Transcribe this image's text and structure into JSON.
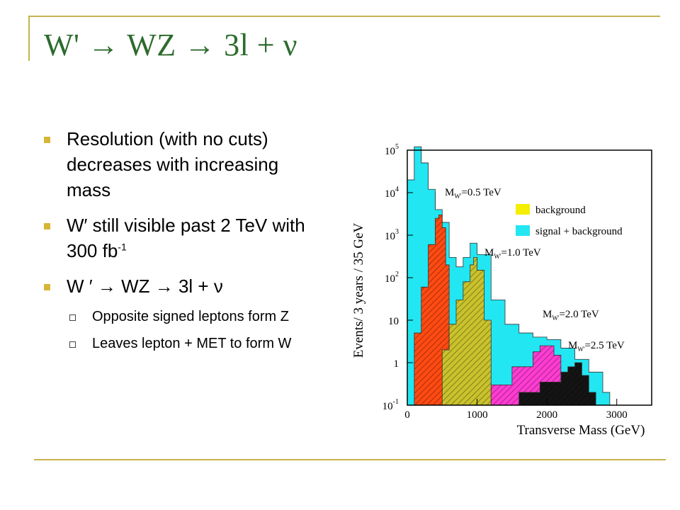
{
  "slide": {
    "title": "W' → WZ → 3l + ν",
    "bullets": [
      {
        "text": "Resolution (with no cuts) decreases with increasing mass"
      },
      {
        "text": "W′ still visible past 2 TeV with 300 fb",
        "sup": "-1"
      },
      {
        "text": "W ′ → WZ → 3l + ν"
      }
    ],
    "subbullets": [
      {
        "text": "Opposite signed leptons form Z"
      },
      {
        "text": "Leaves lepton + MET to form W"
      }
    ]
  },
  "chart_data": {
    "type": "area",
    "xlabel": "Transverse Mass (GeV)",
    "ylabel": "Events/ 3 years / 35 GeV",
    "xlim": [
      0,
      3500
    ],
    "ylim_log10": [
      -1,
      5
    ],
    "log_y": true,
    "x_ticks": [
      "0",
      "1000",
      "2000",
      "3000"
    ],
    "y_ticks": [
      {
        "base": "10",
        "exp": "5"
      },
      {
        "base": "10",
        "exp": "4"
      },
      {
        "base": "10",
        "exp": "3"
      },
      {
        "base": "10",
        "exp": "2"
      },
      {
        "base": "10",
        "exp": ""
      },
      {
        "base": "1",
        "exp": ""
      },
      {
        "base": "10",
        "exp": "-1"
      }
    ],
    "legend": [
      {
        "label": "background",
        "color": "#f6ee00"
      },
      {
        "label": "signal + background",
        "color": "#22e6f2"
      }
    ],
    "legend_position": "top-right",
    "annotations": [
      {
        "base": "M",
        "sub": "W'",
        "rest": "=0.5 TeV"
      },
      {
        "base": "M",
        "sub": "W'",
        "rest": "=1.0 TeV"
      },
      {
        "base": "M",
        "sub": "W'",
        "rest": "=2.0 TeV"
      },
      {
        "base": "M",
        "sub": "W'",
        "rest": "=2.5 TeV"
      }
    ],
    "series": [
      {
        "name": "background",
        "color": "#f6ee00",
        "x": [
          0,
          100,
          200,
          300,
          400,
          500,
          600,
          700,
          800,
          900,
          1000,
          1200,
          1400,
          1600,
          1800,
          2000,
          2200,
          2400,
          2600,
          2800
        ],
        "y": [
          20000,
          120000,
          50000,
          10000,
          2000,
          400,
          100,
          60,
          35,
          20,
          10,
          4,
          2,
          1,
          0.6,
          0.4,
          0.3,
          0.2,
          0.15,
          0.1
        ]
      },
      {
        "name": "signal + background",
        "color": "#22e6f2",
        "x": [
          0,
          100,
          200,
          300,
          400,
          500,
          600,
          700,
          800,
          900,
          1000,
          1200,
          1400,
          1600,
          1800,
          2000,
          2200,
          2400,
          2600,
          2800,
          2900
        ],
        "y": [
          20000,
          120000,
          50000,
          12000,
          4000,
          2000,
          300,
          180,
          300,
          650,
          350,
          30,
          8,
          5,
          4,
          3.5,
          2.2,
          1.2,
          0.6,
          0.2,
          0.1
        ]
      },
      {
        "name": "",
        "color": "#ff4a12",
        "x": [
          0,
          100,
          200,
          300,
          400,
          450,
          500,
          550,
          600
        ],
        "y": [
          0.1,
          5,
          60,
          600,
          2500,
          3000,
          1500,
          200,
          0.1
        ]
      },
      {
        "name": "",
        "color": "#c9c22c",
        "x": [
          400,
          500,
          600,
          700,
          800,
          900,
          950,
          1000,
          1100,
          1200
        ],
        "y": [
          0.1,
          2,
          8,
          30,
          80,
          200,
          300,
          150,
          10,
          0.1
        ]
      },
      {
        "name": "",
        "color": "#ff3cd2",
        "x": [
          900,
          1200,
          1500,
          1800,
          1900,
          2000,
          2100,
          2200,
          2400
        ],
        "y": [
          0.1,
          0.3,
          0.8,
          1.8,
          2.5,
          2.5,
          1.5,
          0.5,
          0.1
        ]
      },
      {
        "name": "",
        "color": "#141414",
        "x": [
          1300,
          1600,
          1900,
          2200,
          2300,
          2400,
          2500,
          2600,
          2700
        ],
        "y": [
          0.1,
          0.2,
          0.35,
          0.6,
          0.8,
          1.0,
          0.5,
          0.2,
          0.1
        ]
      }
    ]
  }
}
